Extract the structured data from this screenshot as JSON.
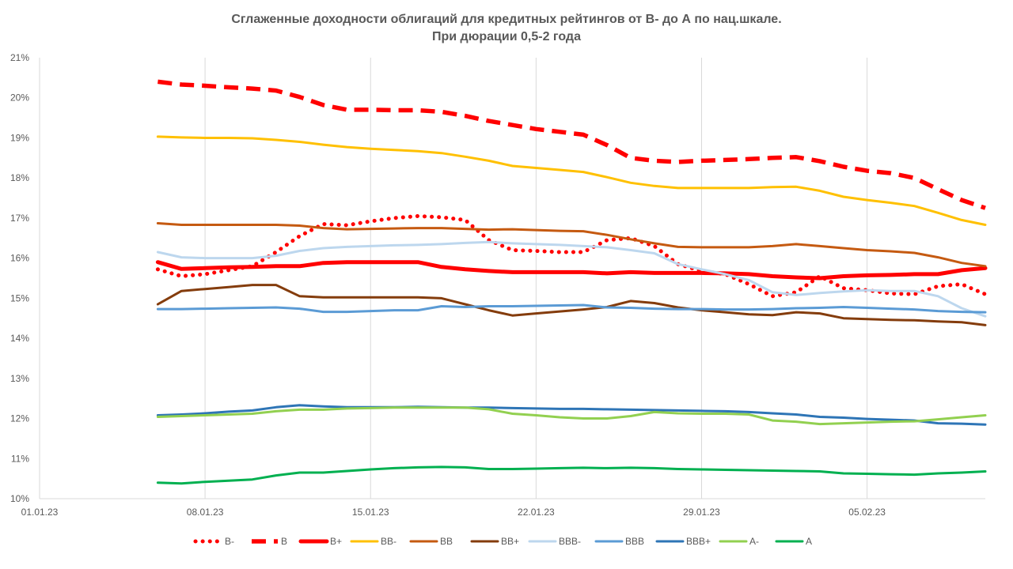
{
  "chart_data": {
    "type": "line",
    "title_line1": "Сглаженные доходности облигаций для кредитных рейтингов от B- до А по нац.шкале.",
    "title_line2": "При дюрации 0,5-2 года",
    "xlabel": "",
    "ylabel": "",
    "x_tick_labels": [
      "01.01.23",
      "08.01.23",
      "15.01.23",
      "22.01.23",
      "29.01.23",
      "05.02.23"
    ],
    "x_range_days": [
      0,
      40
    ],
    "x_days_from": "01.01.23",
    "y_tick_labels": [
      "10%",
      "11%",
      "12%",
      "13%",
      "14%",
      "15%",
      "16%",
      "17%",
      "18%",
      "19%",
      "20%",
      "21%"
    ],
    "ylim": [
      10,
      21
    ],
    "grid": "vertical",
    "legend_position": "bottom",
    "x_days": [
      5,
      6,
      7,
      8,
      9,
      10,
      11,
      12,
      13,
      14,
      15,
      16,
      17,
      18,
      19,
      20,
      21,
      22,
      23,
      24,
      25,
      26,
      27,
      28,
      29,
      30,
      31,
      32,
      33,
      34,
      35,
      36,
      37,
      38,
      39,
      40
    ],
    "series": [
      {
        "name": "B-",
        "color": "#ff0000",
        "style": "dotted",
        "values": [
          15.72,
          15.55,
          15.6,
          15.7,
          15.8,
          16.15,
          16.55,
          16.85,
          16.82,
          16.92,
          17.0,
          17.05,
          17.02,
          16.95,
          16.45,
          16.2,
          16.18,
          16.15,
          16.15,
          16.45,
          16.5,
          16.3,
          15.85,
          15.68,
          15.6,
          15.35,
          15.05,
          15.15,
          15.55,
          15.25,
          15.2,
          15.12,
          15.1,
          15.3,
          15.35,
          15.1
        ]
      },
      {
        "name": "B",
        "color": "#ff0000",
        "style": "dashed",
        "values": [
          20.4,
          20.33,
          20.3,
          20.26,
          20.23,
          20.18,
          20.02,
          19.82,
          19.7,
          19.7,
          19.69,
          19.69,
          19.65,
          19.55,
          19.42,
          19.32,
          19.22,
          19.15,
          19.08,
          18.82,
          18.5,
          18.43,
          18.4,
          18.43,
          18.45,
          18.47,
          18.5,
          18.52,
          18.42,
          18.28,
          18.18,
          18.12,
          18.0,
          17.72,
          17.45,
          17.25
        ]
      },
      {
        "name": "B+",
        "color": "#ff0000",
        "style": "solid-thick",
        "values": [
          15.9,
          15.73,
          15.75,
          15.77,
          15.78,
          15.8,
          15.8,
          15.88,
          15.9,
          15.9,
          15.9,
          15.9,
          15.78,
          15.72,
          15.68,
          15.65,
          15.65,
          15.65,
          15.65,
          15.62,
          15.65,
          15.63,
          15.63,
          15.63,
          15.62,
          15.6,
          15.55,
          15.52,
          15.5,
          15.55,
          15.57,
          15.58,
          15.6,
          15.6,
          15.7,
          15.75
        ]
      },
      {
        "name": "BB-",
        "color": "#ffc000",
        "style": "solid",
        "values": [
          19.03,
          19.01,
          19.0,
          19.0,
          18.99,
          18.95,
          18.9,
          18.83,
          18.77,
          18.73,
          18.7,
          18.67,
          18.62,
          18.53,
          18.43,
          18.3,
          18.25,
          18.2,
          18.15,
          18.02,
          17.88,
          17.8,
          17.75,
          17.75,
          17.75,
          17.75,
          17.77,
          17.78,
          17.68,
          17.53,
          17.45,
          17.38,
          17.3,
          17.13,
          16.95,
          16.83
        ]
      },
      {
        "name": "BB",
        "color": "#c55a11",
        "style": "solid",
        "values": [
          16.87,
          16.83,
          16.83,
          16.83,
          16.83,
          16.83,
          16.81,
          16.75,
          16.72,
          16.73,
          16.74,
          16.75,
          16.75,
          16.73,
          16.71,
          16.72,
          16.7,
          16.68,
          16.67,
          16.58,
          16.47,
          16.37,
          16.28,
          16.27,
          16.27,
          16.27,
          16.3,
          16.35,
          16.3,
          16.25,
          16.2,
          16.17,
          16.13,
          16.02,
          15.88,
          15.8
        ]
      },
      {
        "name": "BB+",
        "color": "#843c0c",
        "style": "solid",
        "values": [
          14.85,
          15.18,
          15.23,
          15.28,
          15.33,
          15.33,
          15.05,
          15.02,
          15.02,
          15.02,
          15.02,
          15.02,
          15.0,
          14.85,
          14.7,
          14.57,
          14.62,
          14.67,
          14.72,
          14.78,
          14.93,
          14.88,
          14.77,
          14.7,
          14.65,
          14.6,
          14.58,
          14.65,
          14.62,
          14.5,
          14.48,
          14.46,
          14.45,
          14.42,
          14.4,
          14.33
        ]
      },
      {
        "name": "BBB-",
        "color": "#bdd7ee",
        "style": "solid",
        "values": [
          16.15,
          16.02,
          16.0,
          16.0,
          16.0,
          16.06,
          16.18,
          16.25,
          16.28,
          16.3,
          16.32,
          16.33,
          16.35,
          16.38,
          16.4,
          16.37,
          16.35,
          16.33,
          16.3,
          16.27,
          16.2,
          16.12,
          15.85,
          15.72,
          15.6,
          15.45,
          15.15,
          15.08,
          15.13,
          15.17,
          15.2,
          15.18,
          15.18,
          15.05,
          14.75,
          14.55
        ]
      },
      {
        "name": "BBB",
        "color": "#5b9bd5",
        "style": "solid",
        "values": [
          14.73,
          14.73,
          14.74,
          14.75,
          14.76,
          14.77,
          14.74,
          14.66,
          14.66,
          14.68,
          14.7,
          14.7,
          14.8,
          14.78,
          14.8,
          14.8,
          14.81,
          14.82,
          14.83,
          14.77,
          14.76,
          14.74,
          14.73,
          14.73,
          14.72,
          14.72,
          14.73,
          14.75,
          14.76,
          14.78,
          14.76,
          14.74,
          14.72,
          14.68,
          14.66,
          14.65
        ]
      },
      {
        "name": "BBB+",
        "color": "#2e75b6",
        "style": "solid",
        "values": [
          12.08,
          12.1,
          12.13,
          12.17,
          12.2,
          12.28,
          12.33,
          12.3,
          12.28,
          12.28,
          12.28,
          12.29,
          12.28,
          12.27,
          12.27,
          12.26,
          12.25,
          12.24,
          12.24,
          12.23,
          12.22,
          12.21,
          12.2,
          12.19,
          12.18,
          12.16,
          12.13,
          12.1,
          12.04,
          12.02,
          11.99,
          11.97,
          11.95,
          11.88,
          11.87,
          11.85
        ]
      },
      {
        "name": "A-",
        "color": "#92d050",
        "style": "solid",
        "values": [
          12.04,
          12.06,
          12.08,
          12.1,
          12.12,
          12.18,
          12.22,
          12.22,
          12.25,
          12.26,
          12.27,
          12.27,
          12.27,
          12.27,
          12.23,
          12.12,
          12.08,
          12.03,
          12.0,
          12.0,
          12.06,
          12.16,
          12.13,
          12.12,
          12.12,
          12.1,
          11.95,
          11.92,
          11.86,
          11.88,
          11.9,
          11.92,
          11.93,
          11.98,
          12.03,
          12.08
        ]
      },
      {
        "name": "A",
        "color": "#00b050",
        "style": "solid",
        "values": [
          10.4,
          10.38,
          10.42,
          10.45,
          10.48,
          10.58,
          10.65,
          10.65,
          10.69,
          10.73,
          10.76,
          10.78,
          10.79,
          10.78,
          10.74,
          10.74,
          10.75,
          10.76,
          10.77,
          10.76,
          10.77,
          10.76,
          10.74,
          10.73,
          10.72,
          10.71,
          10.7,
          10.69,
          10.68,
          10.63,
          10.62,
          10.61,
          10.6,
          10.63,
          10.65,
          10.68
        ]
      }
    ]
  }
}
